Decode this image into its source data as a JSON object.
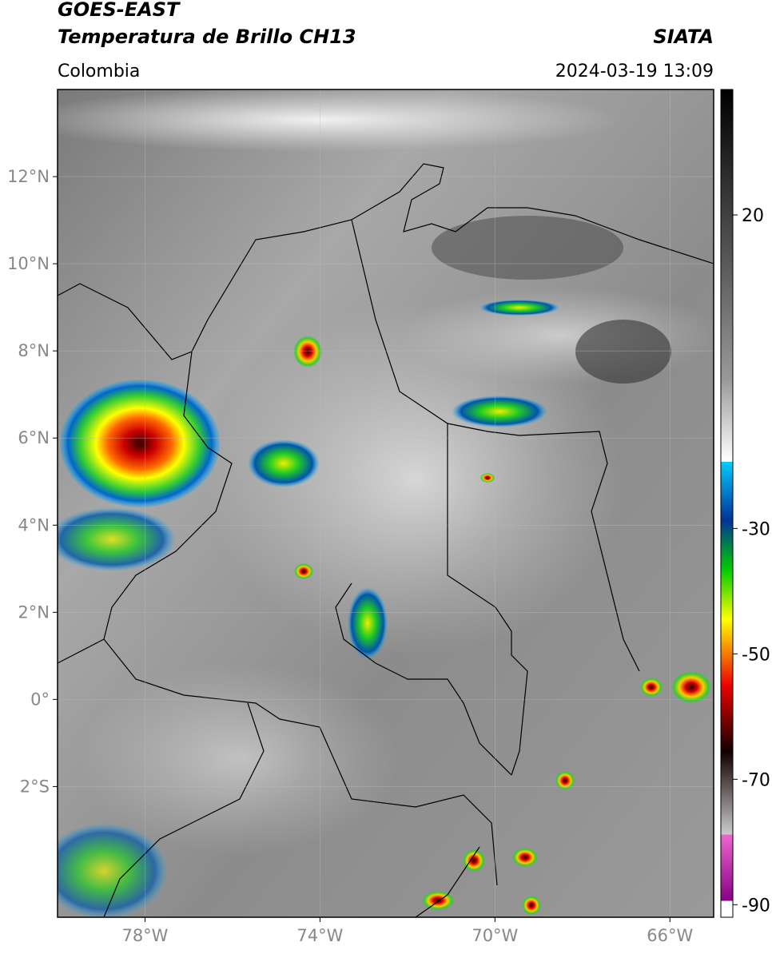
{
  "header": {
    "line1": "GOES-EAST",
    "line2": "Temperatura de Brillo CH13",
    "source": "SIATA",
    "region": "Colombia",
    "datetime": "2024-03-19 13:09"
  },
  "map": {
    "xlim": [
      -80,
      -65
    ],
    "ylim": [
      -5,
      14
    ],
    "xticks": [
      {
        "value": -78,
        "label": "78°W"
      },
      {
        "value": -74,
        "label": "74°W"
      },
      {
        "value": -70,
        "label": "70°W"
      },
      {
        "value": -66,
        "label": "66°W"
      }
    ],
    "yticks": [
      {
        "value": 12,
        "label": "12°N"
      },
      {
        "value": 10,
        "label": "10°N"
      },
      {
        "value": 8,
        "label": "8°N"
      },
      {
        "value": 6,
        "label": "6°N"
      },
      {
        "value": 4,
        "label": "4°N"
      },
      {
        "value": 2,
        "label": "2°N"
      },
      {
        "value": 0,
        "label": "0°"
      },
      {
        "value": -2,
        "label": "2°S"
      }
    ]
  },
  "colorbar": {
    "lim": [
      -92,
      40
    ],
    "ticks": [
      20,
      -30,
      -50,
      -70,
      -90
    ]
  }
}
